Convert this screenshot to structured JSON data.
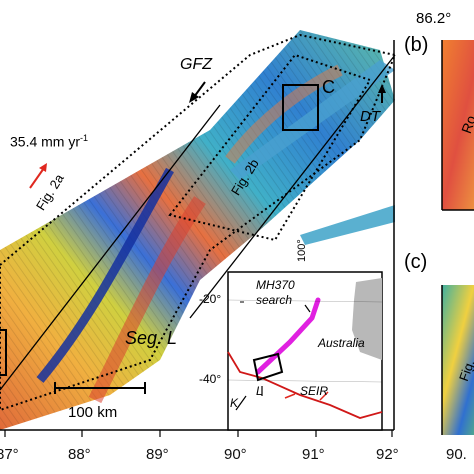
{
  "main_map": {
    "labels": {
      "gfz": "GFZ",
      "dt": "DT",
      "c_box": "C",
      "seg_l": "Seg. L",
      "rate_value": "35.4 mm yr",
      "rate_exp": "-1",
      "fig2a": "Fig. 2a",
      "fig2b": "Fig. 2b",
      "scale_bar": "100 km",
      "lat_tick": "100°"
    },
    "x_axis_ticks": [
      "87°",
      "88°",
      "89°",
      "90°",
      "91°",
      "92°"
    ]
  },
  "side_panels": {
    "b_letter": "(b)",
    "b_top_coord": "86.2°",
    "b_partial_text": "Ro",
    "c_letter": "(c)",
    "c_partial_text": "Fig.",
    "c_bottom_tick": "90."
  },
  "inset": {
    "lat_labels": [
      "-20°",
      "-40°"
    ],
    "mh370_label": "MH370",
    "search_label": "search",
    "australia_label": "Australia",
    "seir_label": "SEIR",
    "k_label": "K",
    "l_label": "L"
  },
  "colors": {
    "rate_arrow": "#e0281f",
    "search_track": "#e020e0",
    "seir": "#d01818",
    "australia": "#b8b8b8"
  }
}
